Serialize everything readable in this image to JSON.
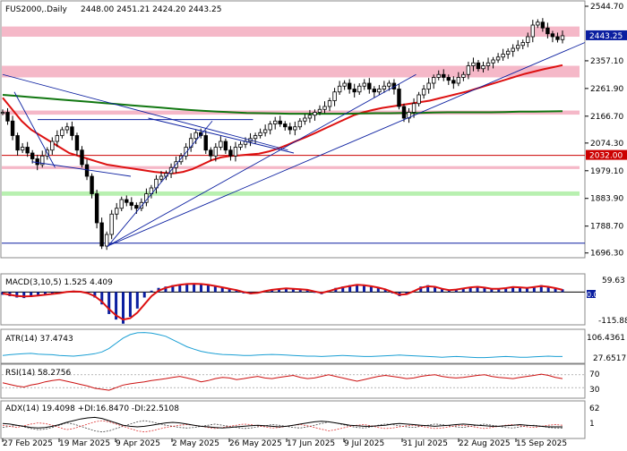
{
  "chart_data": {
    "type": "candlestick",
    "header": {
      "symbol": "FUS2000,.Daily",
      "ohlc": "2448.00 2451.21 2424.20 2443.25"
    },
    "main": {
      "ylim": [
        1680,
        2560
      ],
      "y_ticks": [
        "2544.70",
        "2357.10",
        "2261.90",
        "2166.70",
        "2074.30",
        "1979.10",
        "1883.90",
        "1788.70",
        "1696.30"
      ],
      "y_tick_values": [
        2544.7,
        2357.1,
        2261.9,
        2166.7,
        2074.3,
        1979.1,
        1883.9,
        1788.7,
        1696.3
      ],
      "price_label": "2443.25",
      "price_value": 2443.25,
      "level_label": "2032.00",
      "level_value": 2032.0,
      "close": [
        2180,
        2150,
        2100,
        2050,
        2060,
        2040,
        2020,
        2000,
        2030,
        2050,
        2080,
        2100,
        2120,
        2130,
        2100,
        2050,
        2000,
        1960,
        1900,
        1800,
        1720,
        1760,
        1830,
        1850,
        1880,
        1870,
        1860,
        1850,
        1870,
        1900,
        1920,
        1950,
        1960,
        1970,
        1990,
        2010,
        2030,
        2060,
        2090,
        2110,
        2100,
        2050,
        2030,
        2060,
        2080,
        2050,
        2030,
        2060,
        2070,
        2080,
        2090,
        2100,
        2110,
        2120,
        2140,
        2150,
        2140,
        2130,
        2120,
        2130,
        2150,
        2160,
        2170,
        2180,
        2190,
        2200,
        2220,
        2250,
        2270,
        2280,
        2260,
        2250,
        2270,
        2280,
        2260,
        2250,
        2260,
        2270,
        2280,
        2260,
        2200,
        2160,
        2180,
        2210,
        2240,
        2260,
        2280,
        2300,
        2310,
        2300,
        2290,
        2280,
        2300,
        2310,
        2340,
        2350,
        2330,
        2340,
        2350,
        2360,
        2370,
        2380,
        2390,
        2400,
        2410,
        2420,
        2440,
        2480,
        2490,
        2470,
        2450,
        2440,
        2430,
        2443.25
      ],
      "series": [
        {
          "name": "MA red",
          "color": "#dd1111",
          "values": [
            2230,
            2190,
            2150,
            2120,
            2100,
            2080,
            2060,
            2040,
            2030,
            2020,
            2010,
            2000,
            1995,
            1990,
            1985,
            1980,
            1975,
            1972,
            1970,
            1975,
            1985,
            2000,
            2015,
            2025,
            2030,
            2032,
            2035,
            2038,
            2045,
            2055,
            2068,
            2082,
            2095,
            2110,
            2125,
            2140,
            2155,
            2170,
            2180,
            2188,
            2195,
            2200,
            2205,
            2210,
            2215,
            2220,
            2228,
            2236,
            2244,
            2252,
            2262,
            2272,
            2282,
            2292,
            2302,
            2312,
            2320,
            2328,
            2335,
            2342
          ]
        },
        {
          "name": "MA green",
          "color": "#117711",
          "values": [
            2240,
            2236,
            2232,
            2228,
            2224,
            2220,
            2216,
            2212,
            2208,
            2204,
            2200,
            2196,
            2192,
            2188,
            2185,
            2182,
            2180,
            2178,
            2177,
            2176,
            2175,
            2175,
            2175,
            2175,
            2175,
            2176,
            2177,
            2177,
            2178,
            2178,
            2179,
            2180,
            2180,
            2180,
            2180,
            2181,
            2182,
            2182,
            2183,
            2184
          ]
        }
      ],
      "zones": [
        {
          "from": 2440,
          "to": 2475,
          "color": "#f5b8c8"
        },
        {
          "from": 2300,
          "to": 2340,
          "color": "#f5b8c8"
        },
        {
          "from": 2172,
          "to": 2186,
          "color": "#f5b8c8"
        },
        {
          "from": 1985,
          "to": 1995,
          "color": "#f5b8c8"
        },
        {
          "from": 1893,
          "to": 1908,
          "color": "#b8f0b0"
        }
      ],
      "trendlines": [
        {
          "x": [
            0,
            0.49
          ],
          "y": [
            2310,
            2050
          ],
          "color": "#0b1fa0"
        },
        {
          "x": [
            0.02,
            0.09
          ],
          "y": [
            2250,
            1990
          ],
          "color": "#0b1fa0"
        },
        {
          "x": [
            0.05,
            0.22
          ],
          "y": [
            2010,
            1960
          ],
          "color": "#0b1fa0"
        },
        {
          "x": [
            0.06,
            0.43
          ],
          "y": [
            2155,
            2155
          ],
          "color": "#0b1fa0"
        },
        {
          "x": [
            0.18,
            0.36
          ],
          "y": [
            1718,
            2150
          ],
          "color": "#0b1fa0"
        },
        {
          "x": [
            0.18,
            0.71
          ],
          "y": [
            1720,
            2310
          ],
          "color": "#0b1fa0"
        },
        {
          "x": [
            0.18,
            1.0
          ],
          "y": [
            1720,
            2420
          ],
          "color": "#0b1fa0"
        },
        {
          "x": [
            0.25,
            0.5
          ],
          "y": [
            2160,
            2040
          ],
          "color": "#0b1fa0"
        }
      ],
      "hline": {
        "value": 1730,
        "color": "#0b1fa0"
      }
    },
    "macd": {
      "label": "MACD(3,10,5) 1.525 4.409",
      "y_ticks": [
        "59.63",
        "0.00",
        "-115.889"
      ],
      "ylim": [
        -115.889,
        59.63
      ],
      "hist": [
        -10,
        -15,
        -20,
        -22,
        -18,
        -15,
        -12,
        -8,
        -5,
        2,
        5,
        3,
        -5,
        -20,
        -45,
        -80,
        -100,
        -115,
        -90,
        -60,
        -20,
        5,
        15,
        20,
        25,
        28,
        30,
        30,
        28,
        25,
        20,
        15,
        10,
        5,
        -5,
        -8,
        -5,
        5,
        10,
        12,
        15,
        12,
        10,
        8,
        -3,
        -8,
        5,
        15,
        20,
        25,
        28,
        25,
        20,
        15,
        8,
        -5,
        -15,
        -10,
        5,
        20,
        25,
        20,
        10,
        5,
        10,
        15,
        18,
        20,
        15,
        10,
        12,
        15,
        20,
        18,
        15,
        20,
        25,
        20,
        15,
        10
      ],
      "signal": [
        -5,
        -10,
        -14,
        -16,
        -15,
        -13,
        -10,
        -7,
        -4,
        0,
        2,
        1,
        -4,
        -15,
        -35,
        -62,
        -85,
        -100,
        -95,
        -75,
        -45,
        -15,
        5,
        15,
        22,
        26,
        29,
        30,
        29,
        26,
        22,
        17,
        12,
        7,
        0,
        -5,
        -3,
        3,
        8,
        11,
        13,
        12,
        10,
        8,
        2,
        -3,
        3,
        11,
        17,
        22,
        26,
        25,
        21,
        16,
        10,
        0,
        -10,
        -8,
        3,
        15,
        21,
        19,
        12,
        7,
        9,
        13,
        17,
        19,
        16,
        12,
        12,
        14,
        18,
        17,
        15,
        18,
        22,
        19,
        14,
        8
      ]
    },
    "atr": {
      "label": "ATR(14) 37.4743",
      "y_ticks": [
        "106.4361",
        "27.6517"
      ],
      "ylim": [
        20,
        110
      ],
      "values": [
        40,
        42,
        44,
        45,
        46,
        44,
        43,
        42,
        40,
        39,
        38,
        40,
        42,
        45,
        50,
        60,
        75,
        90,
        100,
        105,
        106,
        104,
        100,
        95,
        85,
        75,
        65,
        58,
        52,
        48,
        45,
        43,
        42,
        41,
        40,
        40,
        41,
        42,
        43,
        42,
        41,
        40,
        39,
        38,
        38,
        37,
        38,
        39,
        40,
        39,
        38,
        37,
        37,
        38,
        39,
        40,
        41,
        40,
        39,
        38,
        37,
        36,
        35,
        36,
        37,
        36,
        35,
        34,
        34,
        35,
        36,
        37,
        36,
        35,
        35,
        36,
        37,
        38,
        37,
        37
      ]
    },
    "rsi": {
      "label": "RSI(14) 58.2756",
      "y_ticks": [
        "70",
        "30"
      ],
      "ylim": [
        0,
        100
      ],
      "values": [
        45,
        40,
        35,
        32,
        38,
        42,
        48,
        52,
        55,
        50,
        45,
        40,
        35,
        28,
        25,
        22,
        30,
        38,
        42,
        45,
        48,
        52,
        55,
        58,
        62,
        65,
        60,
        55,
        48,
        52,
        58,
        62,
        60,
        55,
        58,
        62,
        65,
        60,
        58,
        62,
        65,
        68,
        62,
        58,
        60,
        65,
        70,
        65,
        60,
        55,
        50,
        55,
        60,
        65,
        68,
        65,
        62,
        58,
        60,
        65,
        68,
        70,
        65,
        62,
        60,
        62,
        65,
        68,
        70,
        65,
        62,
        60,
        58,
        62,
        65,
        68,
        72,
        68,
        62,
        58
      ]
    },
    "adx": {
      "label": "ADX(14) 19.4098 +DI:16.8470 -DI:22.5108",
      "y_ticks": [
        "62",
        "1"
      ],
      "ylim": [
        0,
        62
      ],
      "adx_values": [
        25,
        24,
        22,
        20,
        18,
        17,
        18,
        20,
        23,
        27,
        30,
        33,
        35,
        36,
        34,
        30,
        26,
        22,
        20,
        19,
        20,
        22,
        24,
        26,
        27,
        26,
        24,
        22,
        20,
        19,
        18,
        17,
        18,
        19,
        20,
        21,
        22,
        21,
        20,
        19,
        20,
        22,
        24,
        26,
        28,
        29,
        28,
        26,
        24,
        22,
        21,
        20,
        20,
        21,
        22,
        24,
        25,
        24,
        23,
        22,
        21,
        20,
        21,
        22,
        23,
        24,
        23,
        22,
        21,
        20,
        20,
        21,
        22,
        23,
        22,
        21,
        20,
        19,
        19,
        19
      ],
      "plus_di": [
        18,
        20,
        22,
        19,
        16,
        14,
        15,
        18,
        22,
        26,
        24,
        20,
        16,
        12,
        10,
        12,
        16,
        20,
        24,
        28,
        30,
        28,
        25,
        22,
        20,
        18,
        17,
        18,
        20,
        22,
        24,
        22,
        20,
        18,
        16,
        17,
        19,
        21,
        23,
        22,
        20,
        18,
        17,
        19,
        22,
        25,
        28,
        26,
        23,
        20,
        18,
        17,
        19,
        22,
        24,
        23,
        21,
        19,
        18,
        20,
        22,
        24,
        23,
        21,
        19,
        18,
        20,
        22,
        24,
        22,
        20,
        18,
        17,
        19,
        21,
        22,
        20,
        18,
        17,
        17
      ],
      "minus_di": [
        22,
        20,
        18,
        21,
        24,
        26,
        25,
        22,
        18,
        14,
        16,
        20,
        24,
        28,
        30,
        28,
        24,
        20,
        16,
        12,
        10,
        12,
        15,
        18,
        20,
        22,
        23,
        22,
        20,
        18,
        16,
        18,
        20,
        22,
        24,
        23,
        21,
        19,
        17,
        18,
        20,
        22,
        23,
        21,
        18,
        15,
        12,
        14,
        17,
        20,
        22,
        23,
        21,
        18,
        16,
        17,
        19,
        21,
        22,
        20,
        18,
        16,
        17,
        19,
        21,
        22,
        20,
        18,
        16,
        18,
        20,
        22,
        23,
        21,
        19,
        18,
        20,
        22,
        23,
        22
      ]
    },
    "x_labels": [
      "27 Feb 2025",
      "19 Mar 2025",
      "9 Apr 2025",
      "2 May 2025",
      "26 May 2025",
      "17 Jun 2025",
      "9 Jul 2025",
      "31 Jul 2025",
      "22 Aug 2025",
      "15 Sep 2025"
    ],
    "colors": {
      "blue_bars": "#0b1fa0",
      "red_line": "#dd1111",
      "green_line": "#117711",
      "price_tag": "#0b1fa0",
      "level_tag": "#cc0000"
    }
  }
}
